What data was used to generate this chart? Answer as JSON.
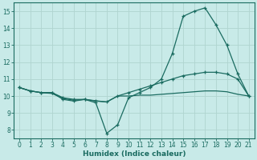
{
  "xlabel": "Humidex (Indice chaleur)",
  "background_color": "#c8eae8",
  "grid_color": "#b0d4d0",
  "line_color": "#1a6b60",
  "xlim": [
    -0.5,
    21.5
  ],
  "ylim": [
    7.5,
    15.5
  ],
  "yticks": [
    8,
    9,
    10,
    11,
    12,
    13,
    14,
    15
  ],
  "xticks": [
    0,
    1,
    2,
    3,
    4,
    5,
    6,
    7,
    8,
    9,
    10,
    11,
    12,
    13,
    14,
    15,
    16,
    17,
    18,
    19,
    20,
    21
  ],
  "series": {
    "line1": {
      "x": [
        0,
        1,
        2,
        3,
        4,
        5,
        6,
        7,
        8,
        9,
        10,
        11,
        12,
        13,
        14,
        15,
        16,
        17,
        18,
        19,
        20,
        21
      ],
      "y": [
        10.5,
        10.3,
        10.2,
        10.2,
        9.8,
        9.7,
        9.8,
        9.6,
        7.8,
        8.3,
        9.9,
        10.2,
        10.5,
        11.0,
        12.5,
        14.7,
        15.0,
        15.2,
        14.2,
        13.0,
        11.3,
        10.0
      ]
    },
    "line2": {
      "x": [
        0,
        1,
        2,
        3,
        4,
        5,
        6,
        7,
        8,
        9,
        10,
        11,
        12,
        13,
        14,
        15,
        16,
        17,
        18,
        19,
        20,
        21
      ],
      "y": [
        10.5,
        10.3,
        10.2,
        10.15,
        9.85,
        9.75,
        9.8,
        9.72,
        9.65,
        10.0,
        10.0,
        10.05,
        10.05,
        10.1,
        10.15,
        10.2,
        10.25,
        10.3,
        10.3,
        10.25,
        10.1,
        10.0
      ]
    },
    "line3": {
      "x": [
        0,
        1,
        2,
        3,
        4,
        5,
        6,
        7,
        8,
        9,
        10,
        11,
        12,
        13,
        14,
        15,
        16,
        17,
        18,
        19,
        20,
        21
      ],
      "y": [
        10.5,
        10.3,
        10.2,
        10.2,
        9.9,
        9.8,
        9.8,
        9.7,
        9.65,
        10.0,
        10.2,
        10.4,
        10.6,
        10.8,
        11.0,
        11.2,
        11.3,
        11.4,
        11.4,
        11.3,
        11.0,
        10.0
      ]
    }
  }
}
